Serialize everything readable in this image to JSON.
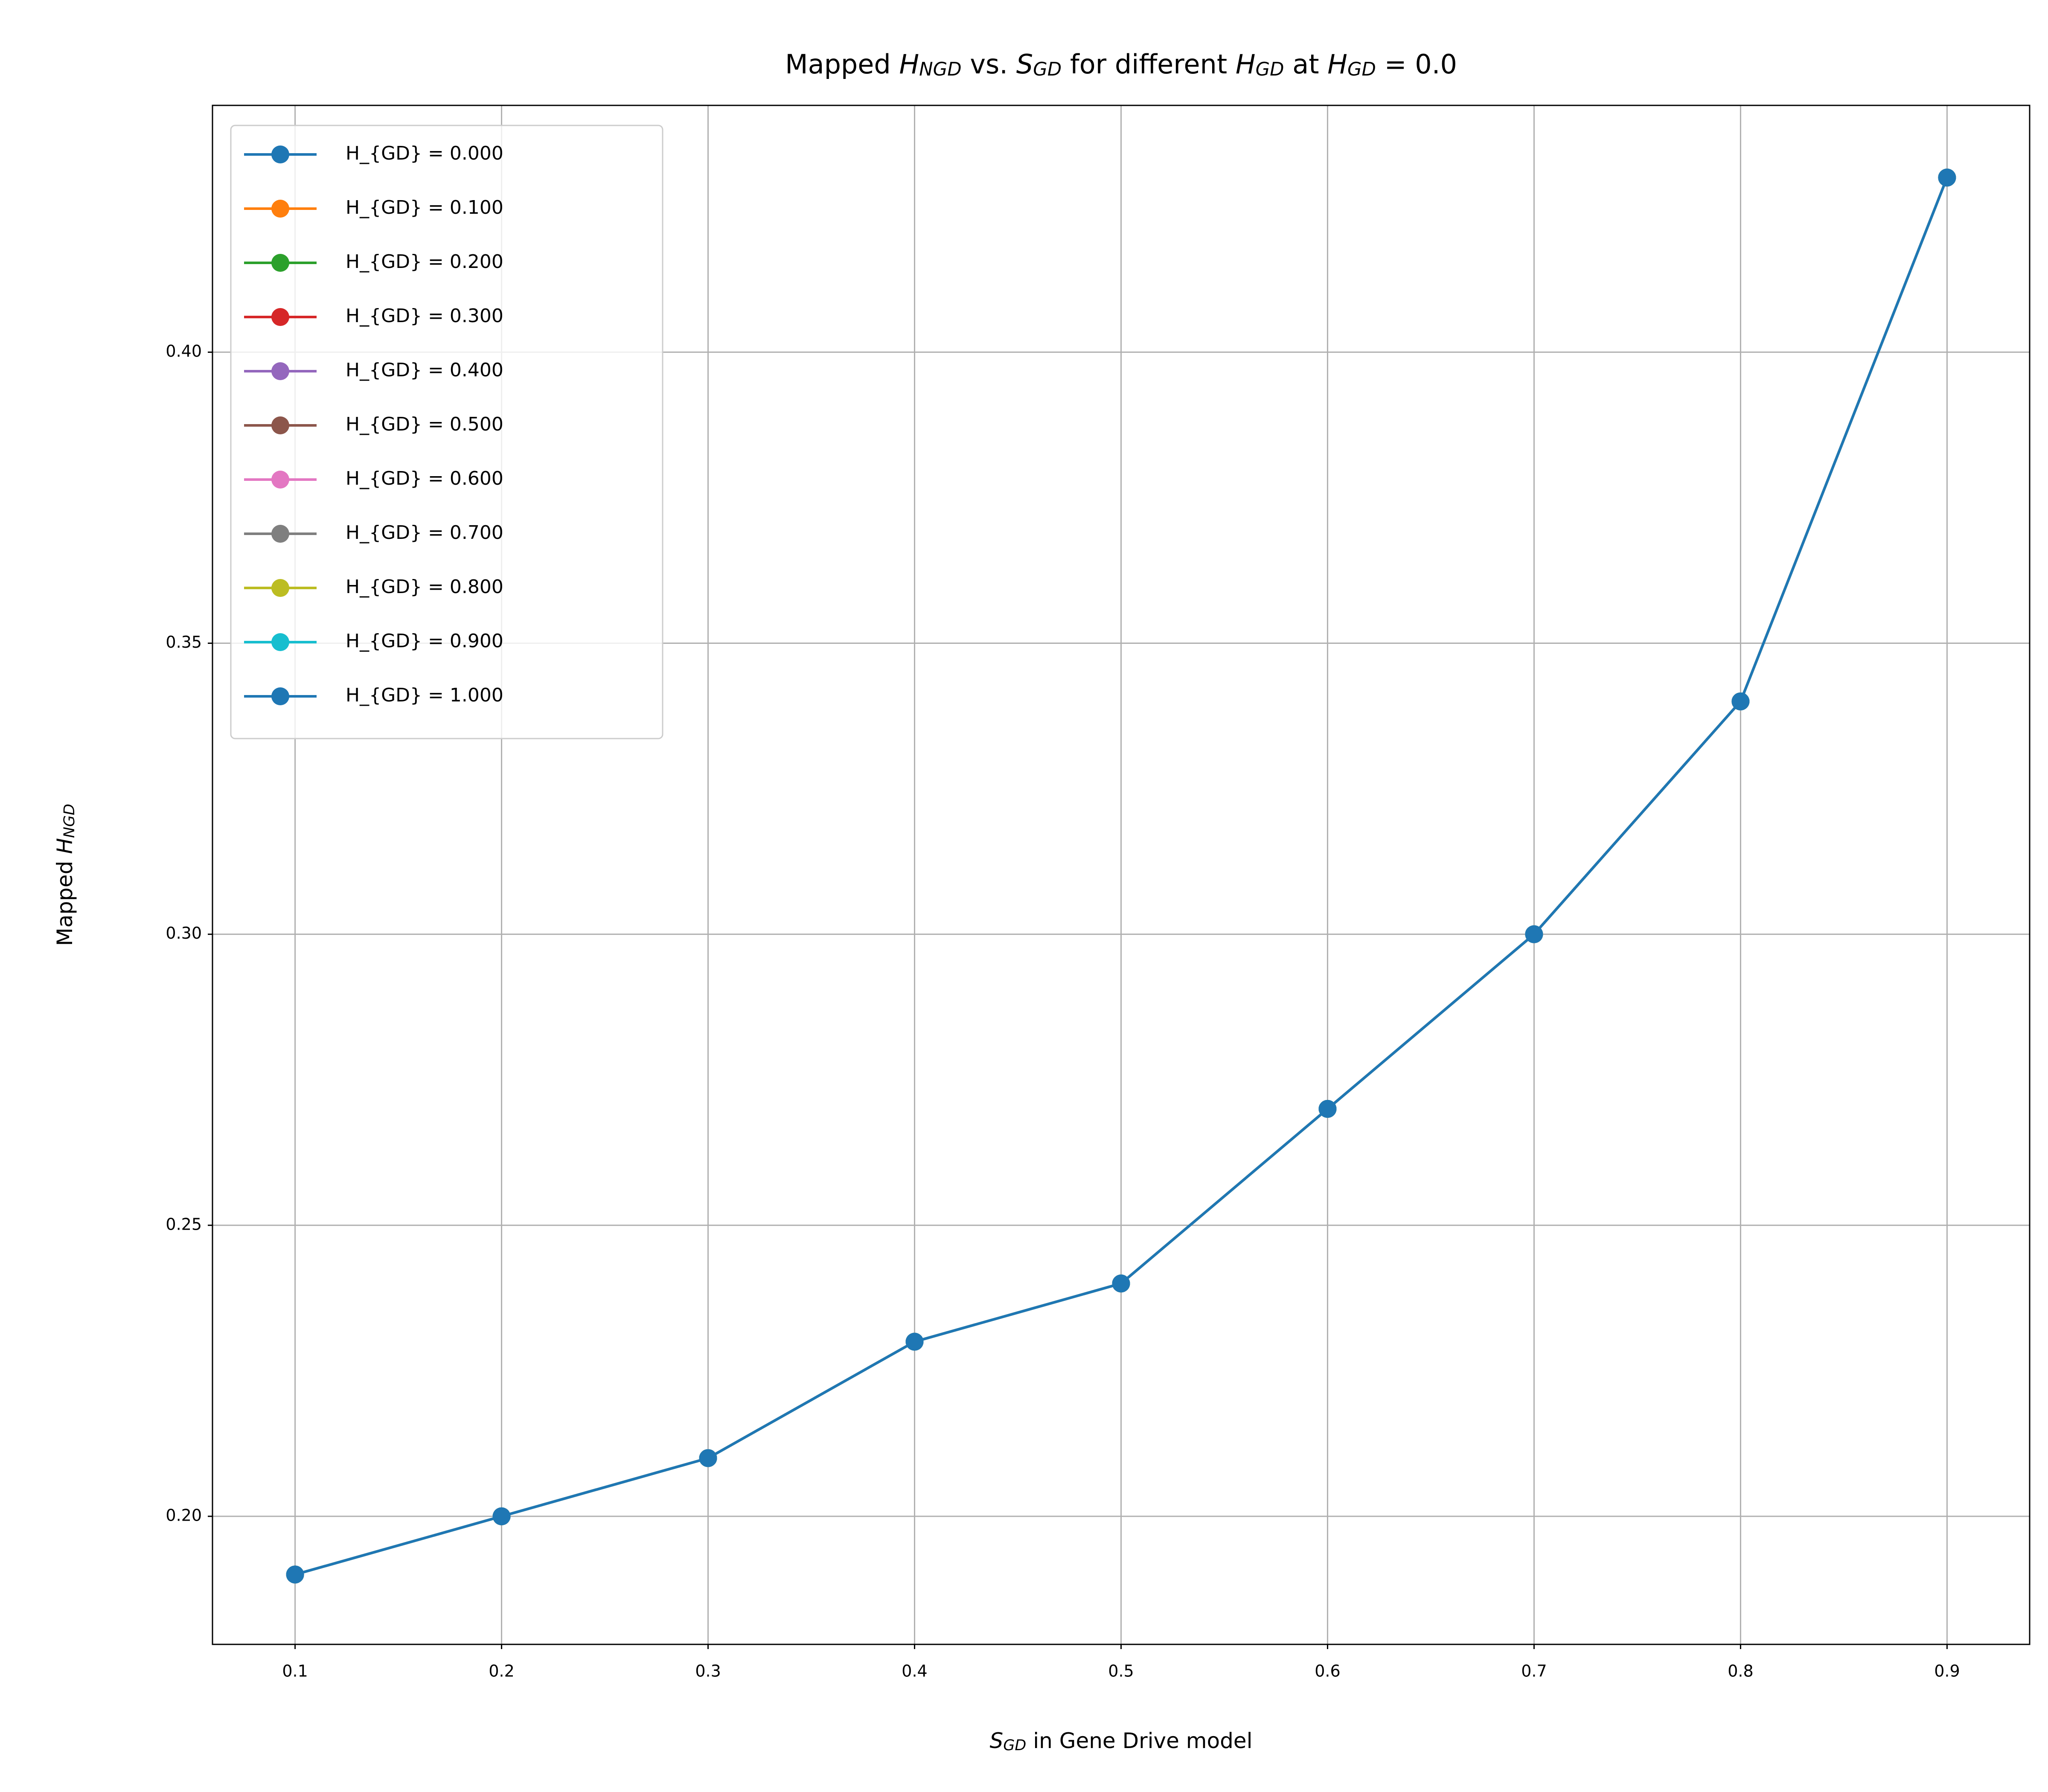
{
  "chart_data": {
    "type": "line",
    "title": [
      {
        "t": "Mapped "
      },
      {
        "t": "H",
        "style": "italic"
      },
      {
        "t": "NGD",
        "style": "sub"
      },
      {
        "t": " vs. "
      },
      {
        "t": "S",
        "style": "italic"
      },
      {
        "t": "GD",
        "style": "sub"
      },
      {
        "t": " for different "
      },
      {
        "t": "H",
        "style": "italic"
      },
      {
        "t": "GD",
        "style": "sub"
      },
      {
        "t": " at "
      },
      {
        "t": "H",
        "style": "italic"
      },
      {
        "t": "GD",
        "style": "sub"
      },
      {
        "t": " = 0.0"
      }
    ],
    "xlabel": [
      {
        "t": "S",
        "style": "italic"
      },
      {
        "t": "GD",
        "style": "sub"
      },
      {
        "t": " in Gene Drive model"
      }
    ],
    "ylabel": [
      {
        "t": "Mapped "
      },
      {
        "t": "H",
        "style": "italic"
      },
      {
        "t": "NGD",
        "style": "sub"
      }
    ],
    "x": [
      0.1,
      0.2,
      0.3,
      0.4,
      0.5,
      0.6,
      0.7,
      0.8,
      0.9
    ],
    "series": [
      {
        "name": "H_{GD} = 0.000",
        "color": "#1f77b4",
        "values": [
          0.19,
          0.2,
          0.21,
          0.23,
          0.24,
          0.27,
          0.3,
          0.34,
          0.43
        ]
      },
      {
        "name": "H_{GD} = 0.100",
        "color": "#ff7f0e",
        "values": [
          0.19,
          0.2,
          0.21,
          0.23,
          0.24,
          0.27,
          0.3,
          0.34,
          0.43
        ]
      },
      {
        "name": "H_{GD} = 0.200",
        "color": "#2ca02c",
        "values": [
          0.19,
          0.2,
          0.21,
          0.23,
          0.24,
          0.27,
          0.3,
          0.34,
          0.43
        ]
      },
      {
        "name": "H_{GD} = 0.300",
        "color": "#d62728",
        "values": [
          0.19,
          0.2,
          0.21,
          0.23,
          0.24,
          0.27,
          0.3,
          0.34,
          0.43
        ]
      },
      {
        "name": "H_{GD} = 0.400",
        "color": "#9467bd",
        "values": [
          0.19,
          0.2,
          0.21,
          0.23,
          0.24,
          0.27,
          0.3,
          0.34,
          0.43
        ]
      },
      {
        "name": "H_{GD} = 0.500",
        "color": "#8c564b",
        "values": [
          0.19,
          0.2,
          0.21,
          0.23,
          0.24,
          0.27,
          0.3,
          0.34,
          0.43
        ]
      },
      {
        "name": "H_{GD} = 0.600",
        "color": "#e377c2",
        "values": [
          0.19,
          0.2,
          0.21,
          0.23,
          0.24,
          0.27,
          0.3,
          0.34,
          0.43
        ]
      },
      {
        "name": "H_{GD} = 0.700",
        "color": "#7f7f7f",
        "values": [
          0.19,
          0.2,
          0.21,
          0.23,
          0.24,
          0.27,
          0.3,
          0.34,
          0.43
        ]
      },
      {
        "name": "H_{GD} = 0.800",
        "color": "#bcbd22",
        "values": [
          0.19,
          0.2,
          0.21,
          0.23,
          0.24,
          0.27,
          0.3,
          0.34,
          0.43
        ]
      },
      {
        "name": "H_{GD} = 0.900",
        "color": "#17becf",
        "values": [
          0.19,
          0.2,
          0.21,
          0.23,
          0.24,
          0.27,
          0.3,
          0.34,
          0.43
        ]
      },
      {
        "name": "H_{GD} = 1.000",
        "color": "#1f77b4",
        "values": [
          0.19,
          0.2,
          0.21,
          0.23,
          0.24,
          0.27,
          0.3,
          0.34,
          0.43
        ]
      }
    ],
    "xlim": [
      0.06,
      0.94
    ],
    "ylim": [
      0.178,
      0.4424
    ],
    "xticks": [
      0.1,
      0.2,
      0.3,
      0.4,
      0.5,
      0.6,
      0.7,
      0.8,
      0.9
    ],
    "yticks": [
      {
        "value": 0.2,
        "label": "0.20"
      },
      {
        "value": 0.25,
        "label": "0.25"
      },
      {
        "value": 0.3,
        "label": "0.30"
      },
      {
        "value": 0.35,
        "label": "0.35"
      },
      {
        "value": 0.4,
        "label": "0.40"
      }
    ],
    "grid": true,
    "legend": "upper left"
  }
}
